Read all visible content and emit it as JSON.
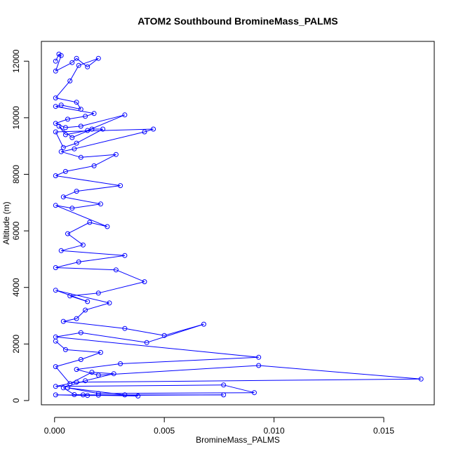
{
  "chart_data": {
    "type": "scatter",
    "title": "ATOM2 Southbound BromineMass_PALMS",
    "xlabel": "BromineMass_PALMS",
    "ylabel": "Altitude (m)",
    "xlim": [
      -0.0006,
      0.0173
    ],
    "ylim": [
      -150,
      12700
    ],
    "x_ticks": [
      0.0,
      0.005,
      0.01,
      0.015
    ],
    "x_tick_labels": [
      "0.000",
      "0.005",
      "0.010",
      "0.015"
    ],
    "y_ticks": [
      0,
      2000,
      4000,
      6000,
      8000,
      10000,
      12000
    ],
    "y_tick_labels": [
      "0",
      "2000",
      "4000",
      "6000",
      "8000",
      "10000",
      "12000"
    ],
    "grid": false,
    "legend": "none",
    "series": [
      {
        "style": "lines-and-circles",
        "color": "#0000ff",
        "x": [
          5e-05,
          0.0002,
          0.0003,
          5e-05,
          0.0008,
          0.001,
          0.0015,
          0.002,
          0.0011,
          0.0007,
          5e-05,
          0.001,
          0.0012,
          0.0003,
          5e-05,
          0.0018,
          0.0014,
          0.0006,
          5e-05,
          0.0005,
          0.0012,
          0.0032,
          0.0015,
          0.0005,
          0.0002,
          0.0008,
          0.0017,
          0.0022,
          0.001,
          0.0004,
          5e-05,
          0.0045,
          0.0041,
          0.0009,
          0.0003,
          0.0012,
          0.0028,
          0.0018,
          0.0005,
          5e-05,
          0.003,
          0.001,
          0.0004,
          0.0021,
          0.0008,
          5e-05,
          0.0024,
          0.0016,
          0.0006,
          0.0013,
          0.0003,
          0.0032,
          0.0011,
          5e-05,
          0.0028,
          0.0041,
          0.002,
          0.0007,
          0.0015,
          5e-05,
          0.0025,
          0.0014,
          0.001,
          0.0004,
          0.0032,
          0.005,
          0.0068,
          0.0042,
          0.0012,
          5e-05,
          0.0093,
          0.003,
          0.001,
          0.002,
          0.0093,
          0.0167,
          0.001,
          5e-05,
          0.0077,
          0.0091,
          0.002,
          0.0006,
          0.0032,
          0.0038,
          0.0013,
          0.0077,
          0.0015,
          5e-05,
          0.002,
          0.0009,
          0.0004,
          0.0014,
          0.0027,
          0.0017,
          0.0007,
          5e-05,
          0.0012,
          0.0021,
          0.0005,
          5e-05
        ],
        "y": [
          12000,
          12250,
          12200,
          11650,
          11950,
          12100,
          11800,
          12100,
          11850,
          11300,
          10700,
          10550,
          10300,
          10450,
          10400,
          10150,
          10050,
          9950,
          9800,
          9650,
          9700,
          10100,
          9550,
          9400,
          9700,
          9300,
          9600,
          9600,
          9100,
          8950,
          9500,
          9600,
          9500,
          8900,
          8800,
          8600,
          8700,
          8300,
          8100,
          7950,
          7600,
          7400,
          7200,
          6950,
          6800,
          6900,
          6150,
          6300,
          5900,
          5500,
          5300,
          5130,
          4900,
          4700,
          4620,
          4200,
          3800,
          3700,
          3500,
          3900,
          3450,
          3200,
          2900,
          2800,
          2550,
          2300,
          2700,
          2050,
          2400,
          2250,
          1530,
          1300,
          1100,
          900,
          1240,
          760,
          650,
          500,
          550,
          280,
          250,
          450,
          200,
          160,
          200,
          200,
          180,
          200,
          190,
          210,
          450,
          700,
          950,
          1000,
          600,
          1200,
          1450,
          1700,
          1800,
          2100
        ]
      }
    ]
  }
}
